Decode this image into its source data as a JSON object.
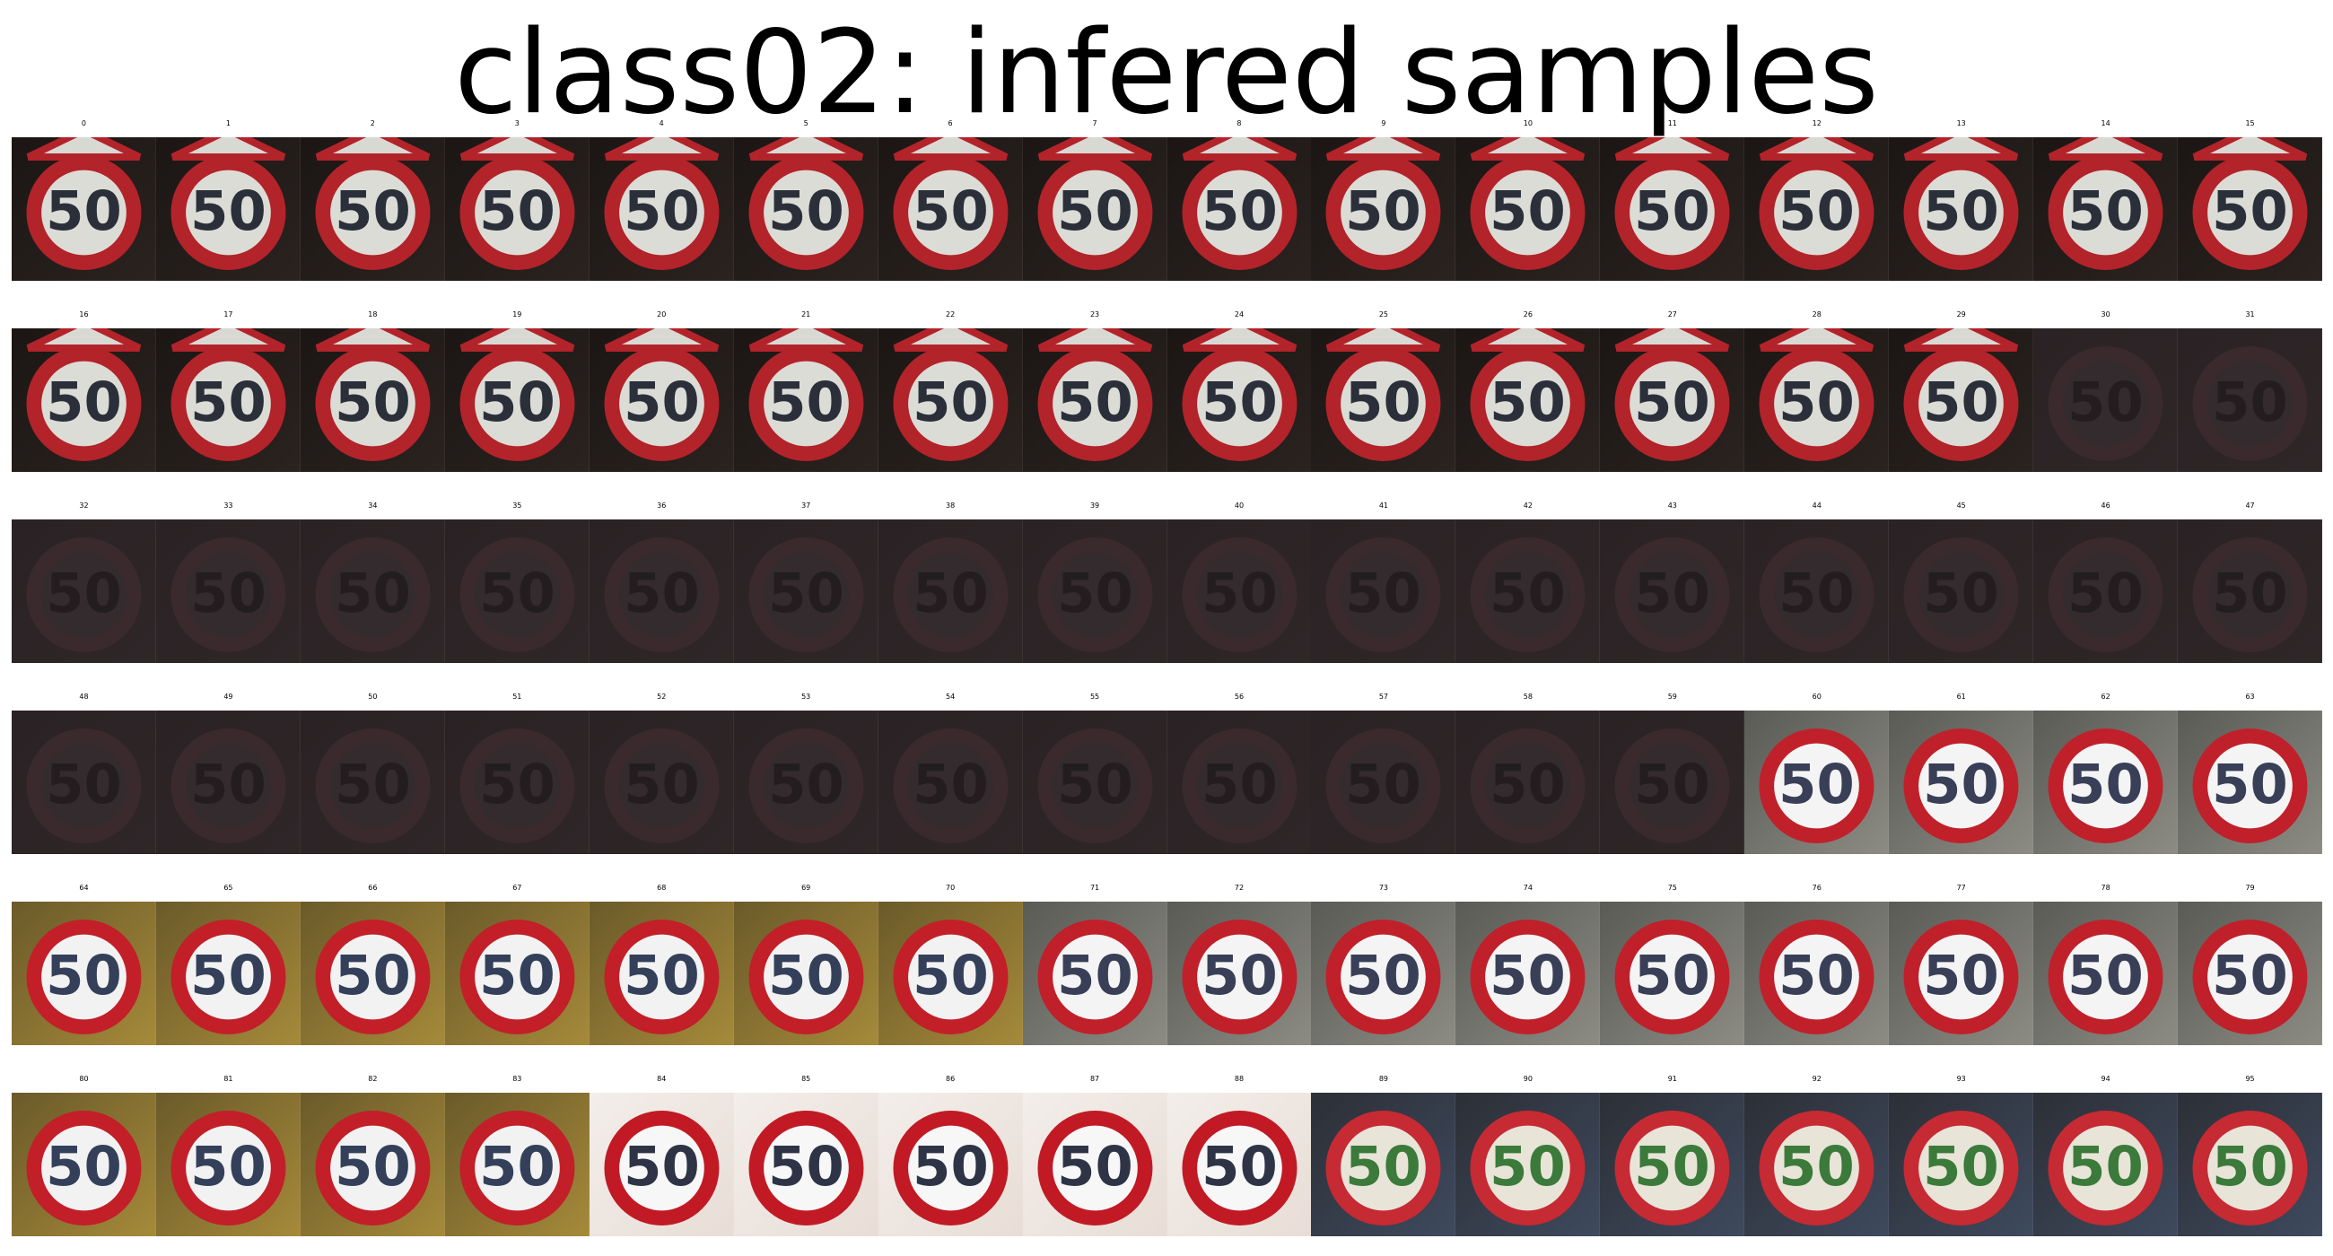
{
  "title": "class02: infered samples",
  "sign_text": "50",
  "samples": [
    {
      "label": "0",
      "scene": "dark"
    },
    {
      "label": "1",
      "scene": "dark"
    },
    {
      "label": "2",
      "scene": "dark"
    },
    {
      "label": "3",
      "scene": "dark"
    },
    {
      "label": "4",
      "scene": "dark"
    },
    {
      "label": "5",
      "scene": "dark"
    },
    {
      "label": "6",
      "scene": "dark"
    },
    {
      "label": "7",
      "scene": "dark"
    },
    {
      "label": "8",
      "scene": "dark"
    },
    {
      "label": "9",
      "scene": "dark"
    },
    {
      "label": "10",
      "scene": "dark"
    },
    {
      "label": "11",
      "scene": "dark"
    },
    {
      "label": "12",
      "scene": "dark"
    },
    {
      "label": "13",
      "scene": "dark"
    },
    {
      "label": "14",
      "scene": "dark"
    },
    {
      "label": "15",
      "scene": "dark"
    },
    {
      "label": "16",
      "scene": "dark"
    },
    {
      "label": "17",
      "scene": "dark"
    },
    {
      "label": "18",
      "scene": "dark"
    },
    {
      "label": "19",
      "scene": "dark"
    },
    {
      "label": "20",
      "scene": "dark"
    },
    {
      "label": "21",
      "scene": "dark"
    },
    {
      "label": "22",
      "scene": "dark"
    },
    {
      "label": "23",
      "scene": "dark"
    },
    {
      "label": "24",
      "scene": "dark"
    },
    {
      "label": "25",
      "scene": "dark"
    },
    {
      "label": "26",
      "scene": "dark"
    },
    {
      "label": "27",
      "scene": "dark"
    },
    {
      "label": "28",
      "scene": "dark"
    },
    {
      "label": "29",
      "scene": "dark"
    },
    {
      "label": "30",
      "scene": "faded"
    },
    {
      "label": "31",
      "scene": "faded"
    },
    {
      "label": "32",
      "scene": "faded"
    },
    {
      "label": "33",
      "scene": "faded"
    },
    {
      "label": "34",
      "scene": "faded"
    },
    {
      "label": "35",
      "scene": "faded"
    },
    {
      "label": "36",
      "scene": "faded"
    },
    {
      "label": "37",
      "scene": "faded"
    },
    {
      "label": "38",
      "scene": "faded"
    },
    {
      "label": "39",
      "scene": "faded"
    },
    {
      "label": "40",
      "scene": "faded"
    },
    {
      "label": "41",
      "scene": "faded"
    },
    {
      "label": "42",
      "scene": "faded"
    },
    {
      "label": "43",
      "scene": "faded"
    },
    {
      "label": "44",
      "scene": "faded"
    },
    {
      "label": "45",
      "scene": "faded"
    },
    {
      "label": "46",
      "scene": "faded"
    },
    {
      "label": "47",
      "scene": "faded"
    },
    {
      "label": "48",
      "scene": "faded"
    },
    {
      "label": "49",
      "scene": "faded"
    },
    {
      "label": "50",
      "scene": "faded"
    },
    {
      "label": "51",
      "scene": "faded"
    },
    {
      "label": "52",
      "scene": "faded"
    },
    {
      "label": "53",
      "scene": "faded"
    },
    {
      "label": "54",
      "scene": "faded"
    },
    {
      "label": "55",
      "scene": "faded"
    },
    {
      "label": "56",
      "scene": "faded"
    },
    {
      "label": "57",
      "scene": "faded"
    },
    {
      "label": "58",
      "scene": "faded"
    },
    {
      "label": "59",
      "scene": "faded"
    },
    {
      "label": "60",
      "scene": "pole"
    },
    {
      "label": "61",
      "scene": "pole"
    },
    {
      "label": "62",
      "scene": "pole"
    },
    {
      "label": "63",
      "scene": "pole"
    },
    {
      "label": "64",
      "scene": "autumn"
    },
    {
      "label": "65",
      "scene": "autumn"
    },
    {
      "label": "66",
      "scene": "autumn"
    },
    {
      "label": "67",
      "scene": "autumn"
    },
    {
      "label": "68",
      "scene": "autumn"
    },
    {
      "label": "69",
      "scene": "autumn"
    },
    {
      "label": "70",
      "scene": "autumn"
    },
    {
      "label": "71",
      "scene": "pole"
    },
    {
      "label": "72",
      "scene": "pole"
    },
    {
      "label": "73",
      "scene": "pole"
    },
    {
      "label": "74",
      "scene": "pole"
    },
    {
      "label": "75",
      "scene": "pole"
    },
    {
      "label": "76",
      "scene": "pole"
    },
    {
      "label": "77",
      "scene": "pole"
    },
    {
      "label": "78",
      "scene": "pole"
    },
    {
      "label": "79",
      "scene": "pole"
    },
    {
      "label": "80",
      "scene": "autumn"
    },
    {
      "label": "81",
      "scene": "autumn"
    },
    {
      "label": "82",
      "scene": "autumn"
    },
    {
      "label": "83",
      "scene": "autumn"
    },
    {
      "label": "84",
      "scene": "bright"
    },
    {
      "label": "85",
      "scene": "bright"
    },
    {
      "label": "86",
      "scene": "bright"
    },
    {
      "label": "87",
      "scene": "bright"
    },
    {
      "label": "88",
      "scene": "bright"
    },
    {
      "label": "89",
      "scene": "night"
    },
    {
      "label": "90",
      "scene": "night"
    },
    {
      "label": "91",
      "scene": "night"
    },
    {
      "label": "92",
      "scene": "night"
    },
    {
      "label": "93",
      "scene": "night"
    },
    {
      "label": "94",
      "scene": "night"
    },
    {
      "label": "95",
      "scene": "night"
    }
  ]
}
